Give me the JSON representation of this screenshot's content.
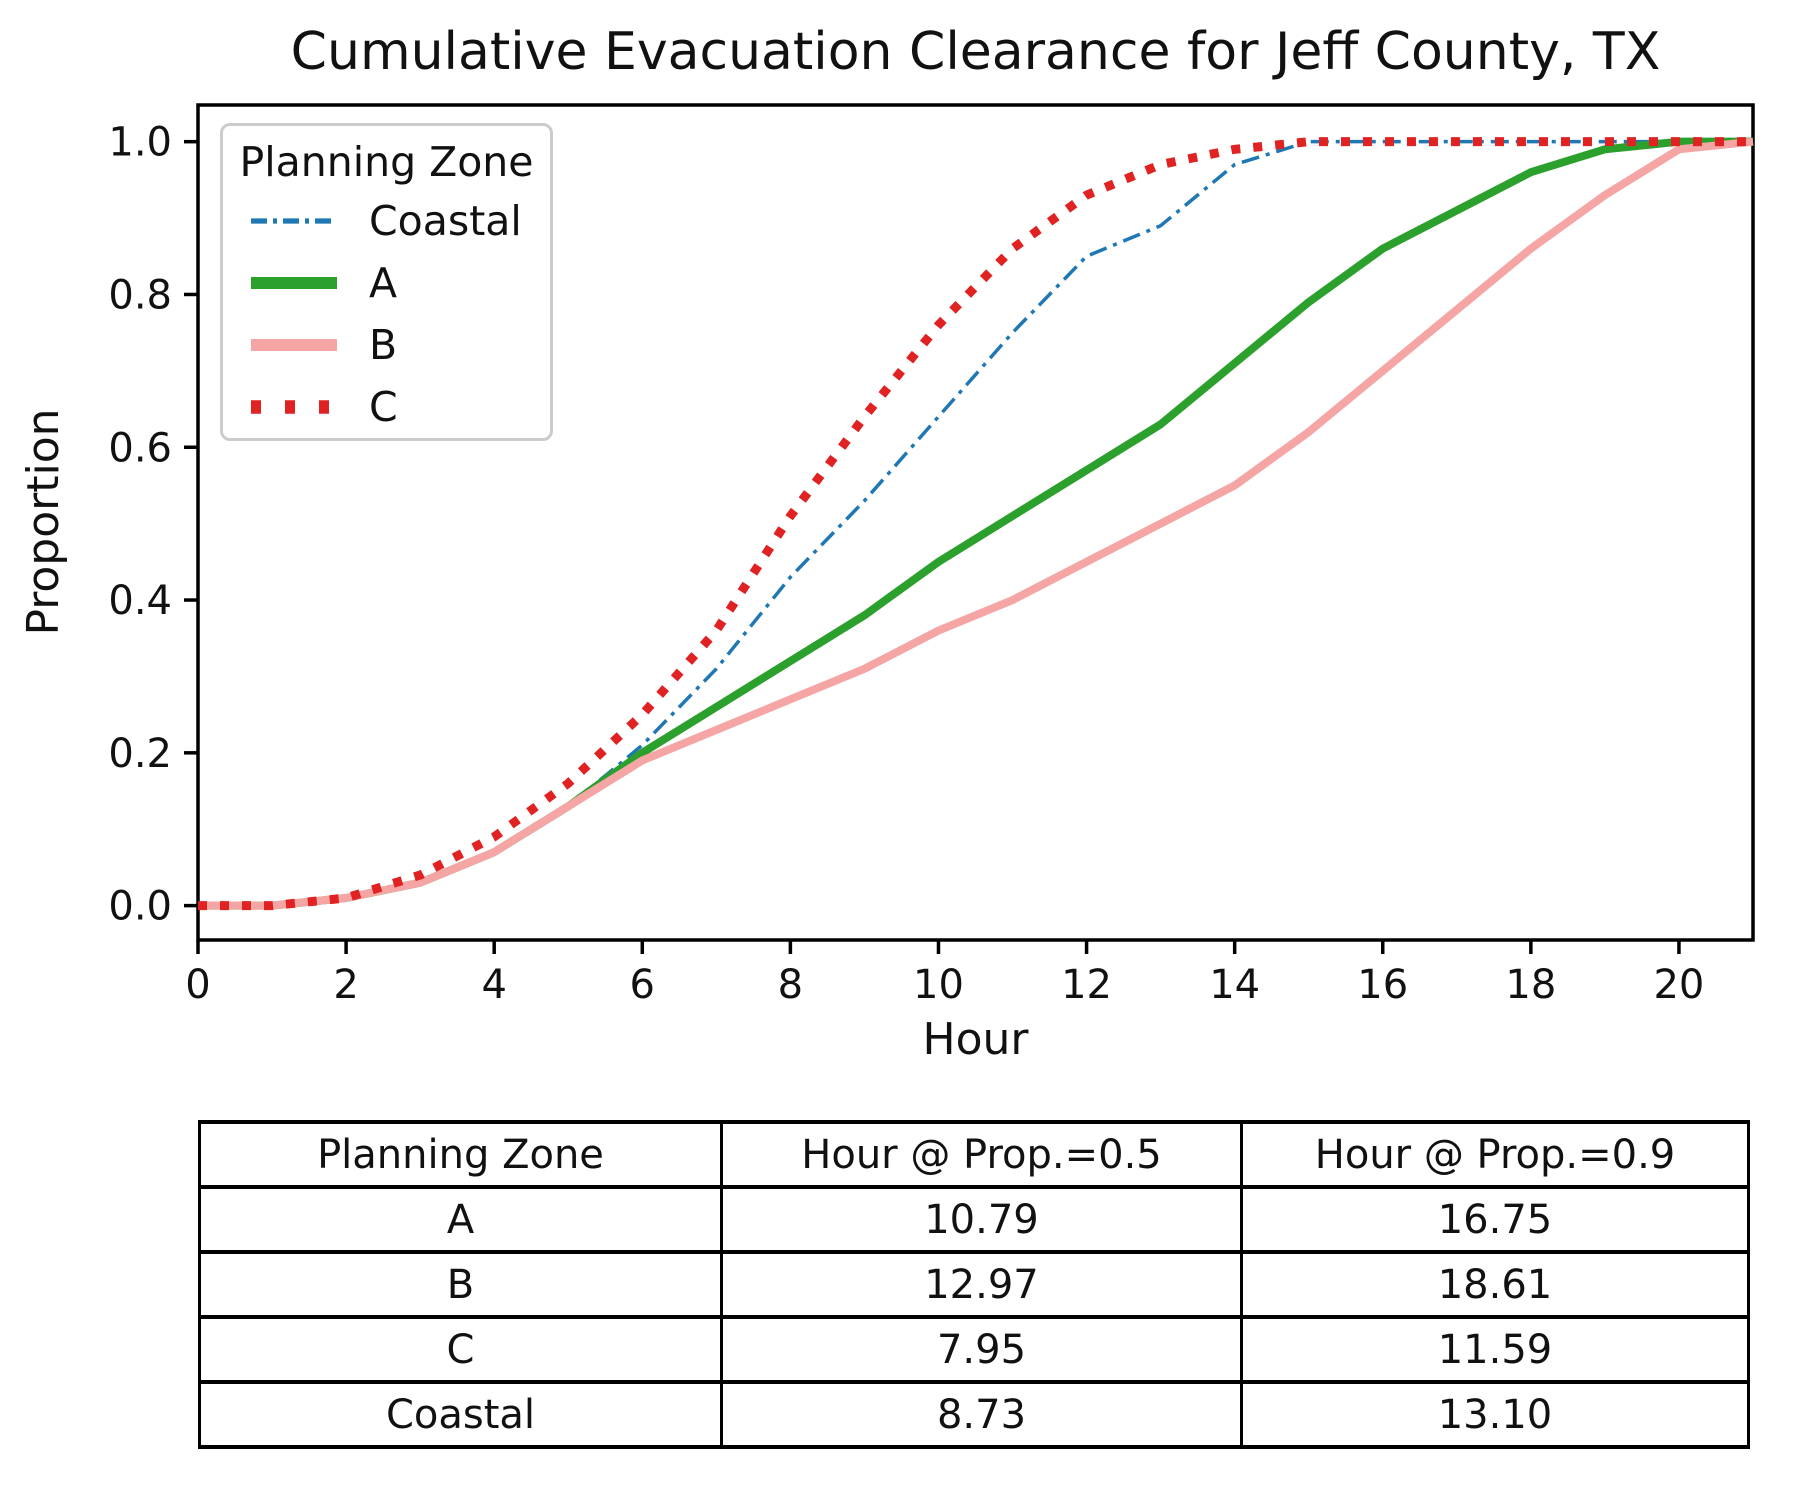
{
  "title": "Cumulative Evacuation Clearance for Jeff County, TX",
  "chart_data": {
    "type": "line",
    "title": "Cumulative Evacuation Clearance for Jeff County, TX",
    "xlabel": "Hour",
    "ylabel": "Proportion",
    "xlim": [
      0,
      21
    ],
    "ylim": [
      -0.045,
      1.048
    ],
    "grid": false,
    "xticks": {
      "values": [
        0,
        2,
        4,
        6,
        8,
        10,
        12,
        14,
        16,
        18,
        20
      ],
      "labels": [
        "0",
        "2",
        "4",
        "6",
        "8",
        "10",
        "12",
        "14",
        "16",
        "18",
        "20"
      ]
    },
    "yticks": {
      "values": [
        0.0,
        0.2,
        0.4,
        0.6,
        0.8,
        1.0
      ],
      "labels": [
        "0.0",
        "0.2",
        "0.4",
        "0.6",
        "0.8",
        "1.0"
      ]
    },
    "legend": {
      "title": "Planning Zone",
      "position": "upper left"
    },
    "x_hours": [
      0,
      1,
      2,
      3,
      4,
      5,
      6,
      7,
      8,
      9,
      10,
      11,
      12,
      13,
      14,
      15,
      16,
      17,
      18,
      19,
      20,
      21
    ],
    "series": [
      {
        "name": "Coastal",
        "color": "#1f77b4",
        "style": "dashdot",
        "width": 3.5,
        "values": [
          0,
          0,
          0.01,
          0.03,
          0.07,
          0.13,
          0.21,
          0.31,
          0.43,
          0.53,
          0.64,
          0.75,
          0.85,
          0.89,
          0.97,
          1,
          1,
          1,
          1,
          1,
          1,
          1
        ]
      },
      {
        "name": "A",
        "color": "#2ca02c",
        "style": "solid",
        "width": 8,
        "values": [
          0,
          0,
          0.01,
          0.03,
          0.07,
          0.13,
          0.2,
          0.26,
          0.32,
          0.38,
          0.45,
          0.51,
          0.57,
          0.63,
          0.71,
          0.79,
          0.86,
          0.91,
          0.96,
          0.99,
          1,
          1
        ]
      },
      {
        "name": "B",
        "color": "#f6a5a5",
        "style": "solid",
        "width": 8,
        "values": [
          0,
          0,
          0.01,
          0.03,
          0.07,
          0.13,
          0.19,
          0.23,
          0.27,
          0.31,
          0.36,
          0.4,
          0.45,
          0.5,
          0.55,
          0.62,
          0.7,
          0.78,
          0.86,
          0.93,
          0.99,
          1
        ]
      },
      {
        "name": "C",
        "color": "#e02222",
        "style": "dotted",
        "width": 9,
        "values": [
          0,
          0,
          0.01,
          0.04,
          0.09,
          0.16,
          0.25,
          0.36,
          0.51,
          0.64,
          0.76,
          0.86,
          0.93,
          0.97,
          0.99,
          1,
          1,
          1,
          1,
          1,
          1,
          1
        ]
      }
    ]
  },
  "table": {
    "columns": [
      "Planning Zone",
      "Hour @ Prop.=0.5",
      "Hour @ Prop.=0.9"
    ],
    "rows": [
      [
        "A",
        "10.79",
        "16.75"
      ],
      [
        "B",
        "12.97",
        "18.61"
      ],
      [
        "C",
        "7.95",
        "11.59"
      ],
      [
        "Coastal",
        "8.73",
        "13.10"
      ]
    ]
  }
}
